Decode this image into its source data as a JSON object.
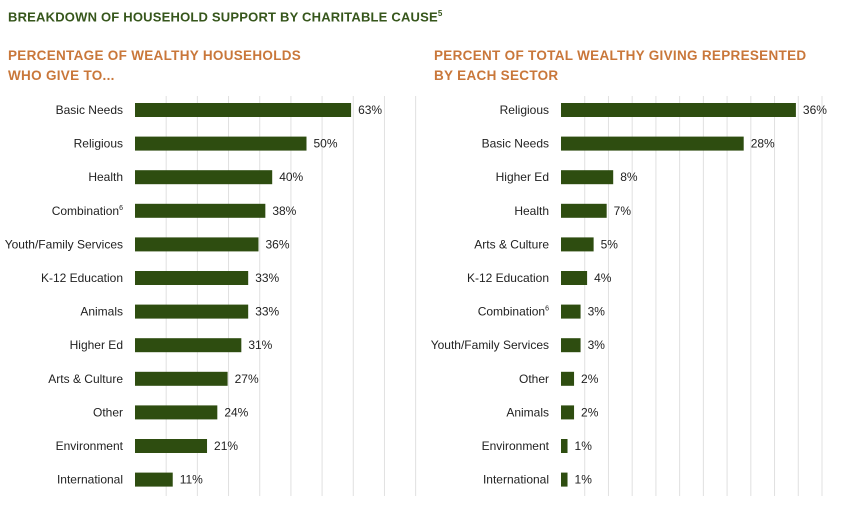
{
  "title": "BREAKDOWN OF HOUSEHOLD SUPPORT BY CHARITABLE CAUSE",
  "title_footnote": "5",
  "colors": {
    "bar": "#2e4d10",
    "grid": "#e0e0e0",
    "title": "#36561b",
    "subtitle": "#c9773a"
  },
  "chart_data": [
    {
      "type": "bar",
      "orientation": "horizontal",
      "title": "PERCENTAGE OF WEALTHY HOUSEHOLDS WHO GIVE TO...",
      "title_lines": [
        "PERCENTAGE OF WEALTHY HOUSEHOLDS",
        "WHO GIVE TO..."
      ],
      "categories": [
        "Basic Needs",
        "Religious",
        "Health",
        "Combination",
        "Youth/Family Services",
        "K-12 Education",
        "Animals",
        "Higher Ed",
        "Arts & Culture",
        "Other",
        "Environment",
        "International"
      ],
      "footnotes": [
        "",
        "",
        "",
        "6",
        "",
        "",
        "",
        "",
        "",
        "",
        "",
        ""
      ],
      "values": [
        63,
        50,
        40,
        38,
        36,
        33,
        33,
        31,
        27,
        24,
        21,
        11
      ],
      "value_labels": [
        "63%",
        "50%",
        "40%",
        "38%",
        "36%",
        "33%",
        "33%",
        "31%",
        "27%",
        "24%",
        "21%",
        "11%"
      ],
      "xlim": [
        0,
        100
      ],
      "grid": true
    },
    {
      "type": "bar",
      "orientation": "horizontal",
      "title": "PERCENT OF TOTAL WEALTHY GIVING REPRESENTED BY EACH SECTOR",
      "title_lines": [
        "PERCENT OF TOTAL WEALTHY GIVING REPRESENTED",
        "BY EACH SECTOR"
      ],
      "categories": [
        "Religious",
        "Basic Needs",
        "Higher Ed",
        "Health",
        "Arts & Culture",
        "K-12 Education",
        "Combination",
        "Youth/Family Services",
        "Other",
        "Animals",
        "Environment",
        "International"
      ],
      "footnotes": [
        "",
        "",
        "",
        "",
        "",
        "",
        "6",
        "",
        "",
        "",
        "",
        ""
      ],
      "values": [
        36,
        28,
        8,
        7,
        5,
        4,
        3,
        3,
        2,
        2,
        1,
        1
      ],
      "value_labels": [
        "36%",
        "28%",
        "8%",
        "7%",
        "5%",
        "4%",
        "3%",
        "3%",
        "2%",
        "2%",
        "1%",
        "1%"
      ],
      "xlim": [
        0,
        40
      ],
      "grid": true
    }
  ]
}
